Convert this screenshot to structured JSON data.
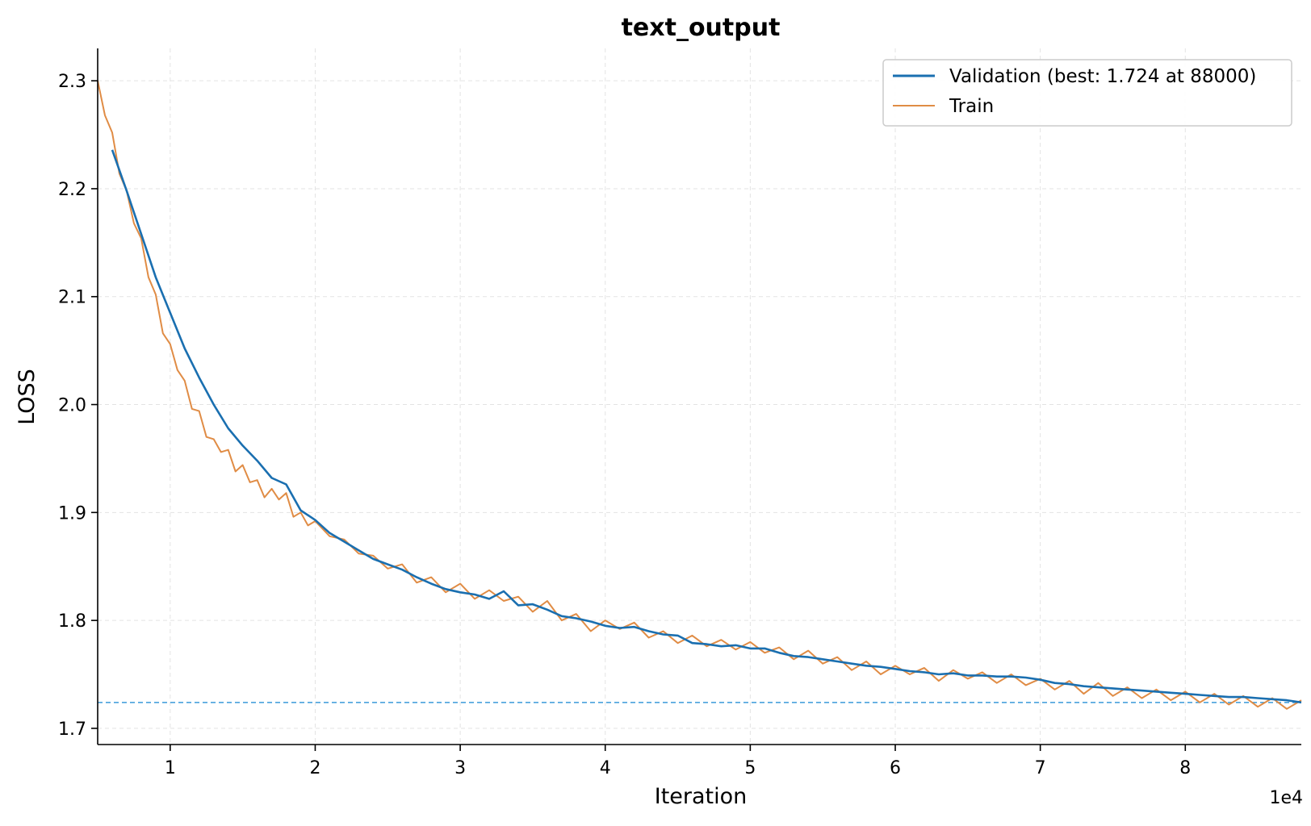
{
  "chart_data": {
    "type": "line",
    "title": "text_output",
    "xlabel": "Iteration",
    "ylabel": "LOSS",
    "x_offset_label": "1e4",
    "xlim": [
      5000,
      88000
    ],
    "ylim": [
      1.685,
      2.33
    ],
    "x_ticks": [
      10000,
      20000,
      30000,
      40000,
      50000,
      60000,
      70000,
      80000
    ],
    "x_tick_labels": [
      "1",
      "2",
      "3",
      "4",
      "5",
      "6",
      "7",
      "8"
    ],
    "y_ticks": [
      1.7,
      1.8,
      1.9,
      2.0,
      2.1,
      2.2,
      2.3
    ],
    "y_tick_labels": [
      "1.7",
      "1.8",
      "1.9",
      "2.0",
      "2.1",
      "2.2",
      "2.3"
    ],
    "grid": true,
    "legend_position": "top-right",
    "best_line": {
      "y": 1.724,
      "color": "#3a9ad9"
    },
    "series": [
      {
        "name": "Validation (best: 1.724 at 88000)",
        "color": "#1a6fb0",
        "x": [
          6000,
          7000,
          8000,
          9000,
          10000,
          11000,
          12000,
          13000,
          14000,
          15000,
          16000,
          17000,
          18000,
          19000,
          20000,
          21000,
          22000,
          23000,
          24000,
          25000,
          26000,
          27000,
          28000,
          29000,
          30000,
          31000,
          32000,
          33000,
          34000,
          35000,
          36000,
          37000,
          38000,
          39000,
          40000,
          41000,
          42000,
          43000,
          44000,
          45000,
          46000,
          47000,
          48000,
          49000,
          50000,
          51000,
          52000,
          53000,
          54000,
          55000,
          56000,
          57000,
          58000,
          59000,
          60000,
          61000,
          62000,
          63000,
          64000,
          65000,
          66000,
          67000,
          68000,
          69000,
          70000,
          71000,
          72000,
          73000,
          74000,
          75000,
          76000,
          77000,
          78000,
          79000,
          80000,
          81000,
          82000,
          83000,
          84000,
          85000,
          86000,
          87000,
          88000
        ],
        "values": [
          2.236,
          2.198,
          2.158,
          2.118,
          2.085,
          2.052,
          2.025,
          2.0,
          1.978,
          1.962,
          1.948,
          1.932,
          1.926,
          1.902,
          1.893,
          1.881,
          1.873,
          1.865,
          1.857,
          1.852,
          1.847,
          1.84,
          1.834,
          1.829,
          1.826,
          1.824,
          1.82,
          1.827,
          1.814,
          1.815,
          1.81,
          1.804,
          1.802,
          1.799,
          1.795,
          1.793,
          1.794,
          1.79,
          1.787,
          1.786,
          1.779,
          1.778,
          1.776,
          1.777,
          1.774,
          1.774,
          1.77,
          1.767,
          1.766,
          1.764,
          1.762,
          1.76,
          1.758,
          1.757,
          1.755,
          1.753,
          1.752,
          1.75,
          1.751,
          1.749,
          1.749,
          1.748,
          1.748,
          1.747,
          1.745,
          1.742,
          1.741,
          1.739,
          1.738,
          1.737,
          1.736,
          1.735,
          1.734,
          1.733,
          1.732,
          1.731,
          1.73,
          1.729,
          1.729,
          1.728,
          1.727,
          1.726,
          1.724
        ]
      },
      {
        "name": "Train",
        "color": "#e08c45",
        "x": [
          5000,
          5500,
          6000,
          6500,
          7000,
          7500,
          8000,
          8500,
          9000,
          9500,
          10000,
          10500,
          11000,
          11500,
          12000,
          12500,
          13000,
          13500,
          14000,
          14500,
          15000,
          15500,
          16000,
          16500,
          17000,
          17500,
          18000,
          18500,
          19000,
          19500,
          20000,
          21000,
          22000,
          23000,
          24000,
          25000,
          26000,
          27000,
          28000,
          29000,
          30000,
          31000,
          32000,
          33000,
          34000,
          35000,
          36000,
          37000,
          38000,
          39000,
          40000,
          41000,
          42000,
          43000,
          44000,
          45000,
          46000,
          47000,
          48000,
          49000,
          50000,
          51000,
          52000,
          53000,
          54000,
          55000,
          56000,
          57000,
          58000,
          59000,
          60000,
          61000,
          62000,
          63000,
          64000,
          65000,
          66000,
          67000,
          68000,
          69000,
          70000,
          71000,
          72000,
          73000,
          74000,
          75000,
          76000,
          77000,
          78000,
          79000,
          80000,
          81000,
          82000,
          83000,
          84000,
          85000,
          86000,
          87000,
          88000
        ],
        "values": [
          2.3,
          2.268,
          2.252,
          2.214,
          2.198,
          2.168,
          2.154,
          2.118,
          2.102,
          2.066,
          2.056,
          2.032,
          2.022,
          1.996,
          1.994,
          1.97,
          1.968,
          1.956,
          1.958,
          1.938,
          1.944,
          1.928,
          1.93,
          1.914,
          1.922,
          1.912,
          1.918,
          1.896,
          1.9,
          1.888,
          1.892,
          1.878,
          1.875,
          1.862,
          1.86,
          1.848,
          1.852,
          1.835,
          1.84,
          1.826,
          1.834,
          1.82,
          1.828,
          1.818,
          1.822,
          1.808,
          1.818,
          1.8,
          1.806,
          1.79,
          1.8,
          1.792,
          1.798,
          1.784,
          1.79,
          1.779,
          1.786,
          1.776,
          1.782,
          1.773,
          1.78,
          1.77,
          1.775,
          1.764,
          1.772,
          1.76,
          1.766,
          1.754,
          1.762,
          1.75,
          1.758,
          1.75,
          1.756,
          1.744,
          1.754,
          1.746,
          1.752,
          1.742,
          1.75,
          1.74,
          1.746,
          1.736,
          1.744,
          1.732,
          1.742,
          1.73,
          1.738,
          1.728,
          1.736,
          1.726,
          1.734,
          1.724,
          1.732,
          1.722,
          1.73,
          1.72,
          1.728,
          1.718,
          1.726
        ]
      }
    ]
  }
}
